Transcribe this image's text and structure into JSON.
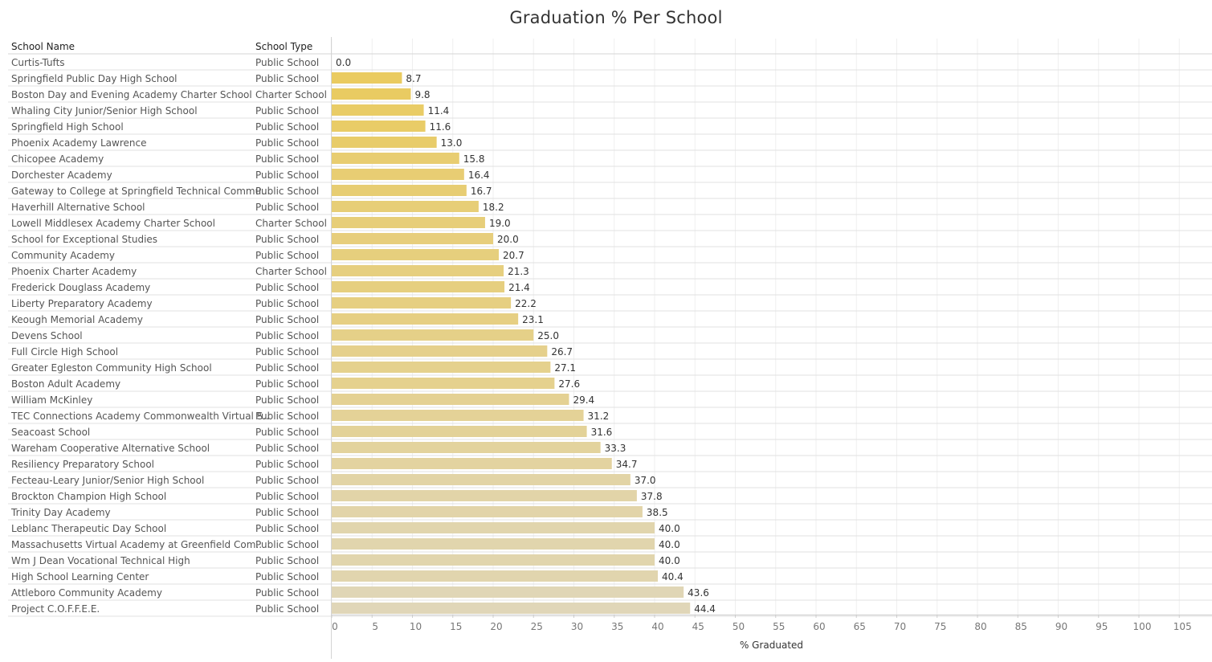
{
  "chart_data": {
    "type": "bar",
    "orientation": "horizontal",
    "title": "Graduation % Per School",
    "columns": {
      "name": "School Name",
      "type": "School Type"
    },
    "xlabel": "% Graduated",
    "xlim": [
      0,
      108
    ],
    "xticks": [
      0,
      5,
      10,
      15,
      20,
      25,
      30,
      35,
      40,
      45,
      50,
      55,
      60,
      65,
      70,
      75,
      80,
      85,
      90,
      95,
      100,
      105
    ],
    "grid": true,
    "color_scale": {
      "low": "#ecc84a",
      "high": "#e0d6b8"
    },
    "rows": [
      {
        "name": "Curtis-Tufts",
        "type": "Public School",
        "value": 0.0
      },
      {
        "name": "Springfield Public Day High School",
        "type": "Public School",
        "value": 8.7
      },
      {
        "name": "Boston Day and Evening Academy Charter School",
        "type": "Charter School",
        "value": 9.8
      },
      {
        "name": "Whaling City Junior/Senior High School",
        "type": "Public School",
        "value": 11.4
      },
      {
        "name": "Springfield High School",
        "type": "Public School",
        "value": 11.6
      },
      {
        "name": "Phoenix Academy Lawrence",
        "type": "Public School",
        "value": 13.0
      },
      {
        "name": "Chicopee Academy",
        "type": "Public School",
        "value": 15.8
      },
      {
        "name": "Dorchester Academy",
        "type": "Public School",
        "value": 16.4
      },
      {
        "name": "Gateway to College at Springfield Technical Commu..",
        "type": "Public School",
        "value": 16.7
      },
      {
        "name": "Haverhill Alternative School",
        "type": "Public School",
        "value": 18.2
      },
      {
        "name": "Lowell Middlesex Academy Charter School",
        "type": "Charter School",
        "value": 19.0
      },
      {
        "name": "School for Exceptional Studies",
        "type": "Public School",
        "value": 20.0
      },
      {
        "name": "Community Academy",
        "type": "Public School",
        "value": 20.7
      },
      {
        "name": "Phoenix Charter Academy",
        "type": "Charter School",
        "value": 21.3
      },
      {
        "name": "Frederick Douglass Academy",
        "type": "Public School",
        "value": 21.4
      },
      {
        "name": "Liberty Preparatory Academy",
        "type": "Public School",
        "value": 22.2
      },
      {
        "name": "Keough Memorial Academy",
        "type": "Public School",
        "value": 23.1
      },
      {
        "name": "Devens School",
        "type": "Public School",
        "value": 25.0
      },
      {
        "name": "Full Circle High School",
        "type": "Public School",
        "value": 26.7
      },
      {
        "name": "Greater Egleston Community High School",
        "type": "Public School",
        "value": 27.1
      },
      {
        "name": "Boston Adult Academy",
        "type": "Public School",
        "value": 27.6
      },
      {
        "name": "William McKinley",
        "type": "Public School",
        "value": 29.4
      },
      {
        "name": "TEC Connections Academy Commonwealth Virtual S..",
        "type": "Public School",
        "value": 31.2
      },
      {
        "name": "Seacoast School",
        "type": "Public School",
        "value": 31.6
      },
      {
        "name": "Wareham Cooperative Alternative School",
        "type": "Public School",
        "value": 33.3
      },
      {
        "name": "Resiliency Preparatory School",
        "type": "Public School",
        "value": 34.7
      },
      {
        "name": "Fecteau-Leary Junior/Senior High School",
        "type": "Public School",
        "value": 37.0
      },
      {
        "name": "Brockton Champion High School",
        "type": "Public School",
        "value": 37.8
      },
      {
        "name": "Trinity Day Academy",
        "type": "Public School",
        "value": 38.5
      },
      {
        "name": "Leblanc Therapeutic Day School",
        "type": "Public School",
        "value": 40.0
      },
      {
        "name": "Massachusetts Virtual Academy at Greenfield Com..",
        "type": "Public School",
        "value": 40.0
      },
      {
        "name": "Wm J Dean Vocational Technical High",
        "type": "Public School",
        "value": 40.0
      },
      {
        "name": "High School Learning Center",
        "type": "Public School",
        "value": 40.4
      },
      {
        "name": "Attleboro Community Academy",
        "type": "Public School",
        "value": 43.6
      },
      {
        "name": "Project C.O.F.F.E.E.",
        "type": "Public School",
        "value": 44.4
      }
    ]
  }
}
